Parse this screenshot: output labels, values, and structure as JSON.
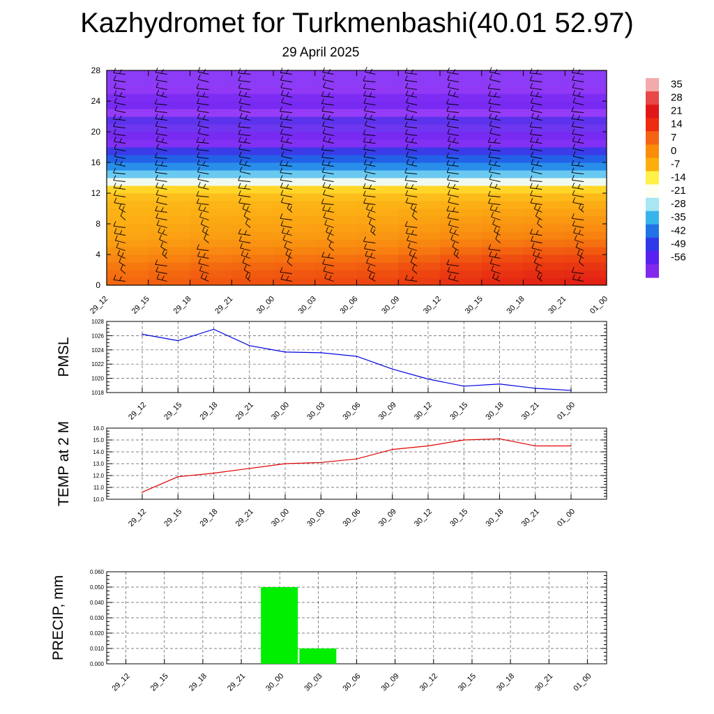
{
  "title": "Kazhydromet for Turkmenbashi(40.01 52.97)",
  "subtitle": "29 April 2025",
  "chart_data": [
    {
      "type": "heatmap",
      "x_ticks": [
        "29_12",
        "29_15",
        "29_18",
        "29_21",
        "30_00",
        "30_03",
        "30_06",
        "30_09",
        "30_12",
        "30_15",
        "30_18",
        "30_21",
        "01_00"
      ],
      "y_ticks": [
        "0",
        "4",
        "8",
        "12",
        "16",
        "20",
        "24",
        "28"
      ],
      "ylim": [
        0,
        28
      ],
      "rows_y": [
        0,
        1,
        2,
        3,
        4,
        5,
        6,
        7,
        8,
        9,
        10,
        11,
        12,
        13,
        14,
        15,
        16,
        17,
        18,
        19,
        20,
        21,
        22,
        23,
        24,
        25,
        26,
        27,
        28
      ],
      "profile_values": [
        14,
        13,
        12,
        10,
        8,
        6,
        4,
        3,
        2,
        1,
        0,
        -1,
        -4,
        -10,
        -20,
        -28,
        -36,
        -42,
        -50,
        -58,
        -52,
        -48,
        -50,
        -54,
        -56,
        -53,
        -52,
        -51,
        -52
      ],
      "time_offsets": [
        -4,
        -3,
        -2,
        -1,
        -1,
        0,
        0,
        1,
        3,
        5,
        6,
        7,
        7
      ],
      "colorbar_labels": [
        "35",
        "28",
        "21",
        "14",
        "7",
        "0",
        "-7",
        "-14",
        "-21",
        "-28",
        "-35",
        "-42",
        "-49",
        "-56"
      ],
      "colorbar_colors": [
        "#f2aaaa",
        "#e84848",
        "#e01818",
        "#ee2c10",
        "#f56414",
        "#fb8c0a",
        "#fdae0c",
        "#fff04a",
        "#fffff0",
        "#a8e6f4",
        "#38b4ec",
        "#2274e6",
        "#2e3ae8",
        "#5a20f0",
        "#8228ec"
      ],
      "barbs": "wind-barbs"
    },
    {
      "type": "line",
      "ylabel": "PMSL",
      "x": [
        "29_12",
        "29_15",
        "29_18",
        "29_21",
        "30_00",
        "30_03",
        "30_06",
        "30_09",
        "30_12",
        "30_15",
        "30_18",
        "30_21",
        "01_00"
      ],
      "y_ticks": [
        "1018",
        "1020",
        "1022",
        "1024",
        "1026",
        "1028"
      ],
      "ylim": [
        1018,
        1028
      ],
      "series": [
        {
          "values": [
            1026.2,
            1025.3,
            1026.9,
            1024.6,
            1023.7,
            1023.6,
            1023.1,
            1021.3,
            1019.9,
            1018.9,
            1019.2,
            1018.6,
            1018.3
          ],
          "color": "#0000e0"
        }
      ]
    },
    {
      "type": "line",
      "ylabel": "TEMP at 2 M",
      "x": [
        "29_12",
        "29_15",
        "29_18",
        "29_21",
        "30_00",
        "30_03",
        "30_06",
        "30_09",
        "30_12",
        "30_15",
        "30_18",
        "30_21",
        "01_00"
      ],
      "y_ticks": [
        "10.0",
        "11.0",
        "12.0",
        "13.0",
        "14.0",
        "15.0",
        "16.0"
      ],
      "ylim": [
        10,
        16
      ],
      "series": [
        {
          "values": [
            10.6,
            11.9,
            12.2,
            12.6,
            13.0,
            13.1,
            13.4,
            14.2,
            14.5,
            15.0,
            15.1,
            14.5,
            14.5
          ],
          "color": "#e00000"
        }
      ]
    },
    {
      "type": "bar",
      "ylabel": "PRECIP, mm",
      "categories": [
        "29_12",
        "29_15",
        "29_18",
        "29_21",
        "30_00",
        "30_03",
        "30_06",
        "30_09",
        "30_12",
        "30_15",
        "30_18",
        "30_21",
        "01_00"
      ],
      "y_ticks": [
        "0.000",
        "0.010",
        "0.020",
        "0.030",
        "0.040",
        "0.050",
        "0.060"
      ],
      "ylim": [
        0,
        0.06
      ],
      "values": [
        0,
        0,
        0,
        0,
        0.05,
        0.01,
        0,
        0,
        0,
        0,
        0,
        0,
        0
      ],
      "color": "#00ee00"
    }
  ]
}
